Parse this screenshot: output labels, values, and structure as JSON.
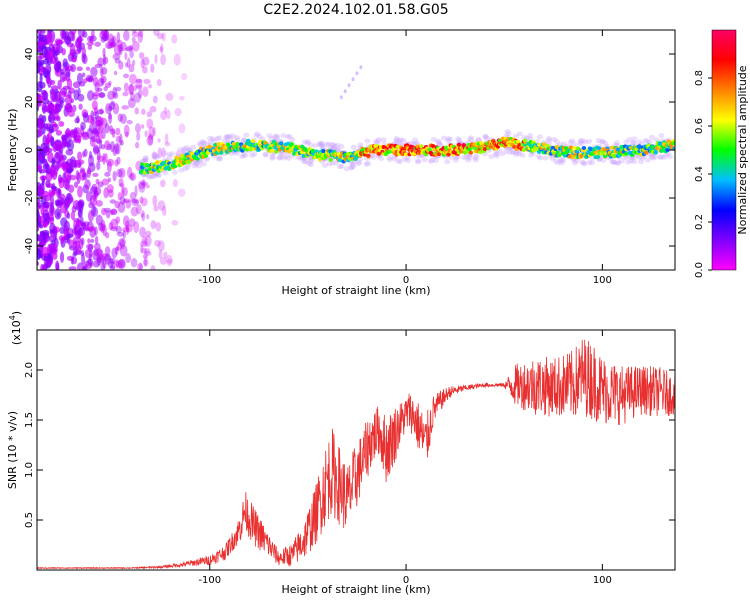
{
  "page_title": "C2E2.2024.102.01.58.G05",
  "chart_data": [
    {
      "type": "heatmap",
      "title": "",
      "xlabel": "Height of straight line (km)",
      "ylabel": "Frequency (Hz)",
      "xlim": [
        -188,
        137
      ],
      "ylim": [
        -50,
        50
      ],
      "xticks": [
        -100,
        0,
        100
      ],
      "yticks": [
        -40,
        -20,
        0,
        20,
        40
      ],
      "grid": false,
      "colorbar": {
        "label": "Normalized spectral amplitude",
        "range": [
          0,
          1
        ],
        "ticks": [
          0.0,
          0.2,
          0.4,
          0.6,
          0.8
        ],
        "colormap": [
          "#ff00ff",
          "#7f00ff",
          "#0000ff",
          "#00bfff",
          "#00ff00",
          "#ffff00",
          "#ff8000",
          "#ff0000",
          "#ff0066"
        ]
      },
      "ridge": {
        "x": [
          -135,
          -120,
          -100,
          -80,
          -60,
          -45,
          -30,
          -15,
          0,
          20,
          40,
          50,
          60,
          80,
          100,
          120,
          137
        ],
        "frequency": [
          -8,
          -6,
          0,
          2,
          1,
          -2,
          -3,
          0,
          0,
          0,
          1,
          3,
          2,
          -1,
          -1,
          0,
          2
        ]
      },
      "noise_region_x": [
        -188,
        -110
      ]
    },
    {
      "type": "line",
      "title": "",
      "xlabel": "Height of straight line (km)",
      "ylabel": "SNR (10 * v/v)",
      "y_exponent_label": "(x10",
      "y_exponent": "4",
      "xlim": [
        -188,
        137
      ],
      "ylim": [
        0,
        2.4
      ],
      "xticks": [
        -100,
        0,
        100
      ],
      "yticks": [
        0.5,
        1.0,
        1.5,
        2.0
      ],
      "grid": false,
      "series": [
        {
          "color": "#e83030",
          "x": [
            -188,
            -140,
            -125,
            -115,
            -100,
            -92,
            -88,
            -85,
            -82,
            -78,
            -72,
            -65,
            -58,
            -52,
            -46,
            -42,
            -38,
            -34,
            -30,
            -26,
            -22,
            -18,
            -14,
            -10,
            -6,
            -2,
            2,
            6,
            10,
            14,
            18,
            22,
            30,
            40,
            50,
            55,
            65,
            75,
            85,
            90,
            95,
            100,
            110,
            120,
            130,
            137
          ],
          "y": [
            0.02,
            0.02,
            0.03,
            0.05,
            0.1,
            0.18,
            0.3,
            0.4,
            0.6,
            0.45,
            0.3,
            0.12,
            0.15,
            0.3,
            0.55,
            0.8,
            1.0,
            0.85,
            0.7,
            0.9,
            1.1,
            1.3,
            1.4,
            1.2,
            1.35,
            1.5,
            1.6,
            1.45,
            1.25,
            1.6,
            1.7,
            1.78,
            1.82,
            1.85,
            1.85,
            1.85,
            1.85,
            1.83,
            1.85,
            1.95,
            1.9,
            1.8,
            1.75,
            1.8,
            1.78,
            1.75
          ],
          "noise_amplitude": [
            0.005,
            0.005,
            0.01,
            0.02,
            0.05,
            0.08,
            0.1,
            0.15,
            0.2,
            0.2,
            0.15,
            0.08,
            0.12,
            0.2,
            0.3,
            0.4,
            0.45,
            0.4,
            0.35,
            0.35,
            0.3,
            0.3,
            0.25,
            0.35,
            0.3,
            0.2,
            0.2,
            0.25,
            0.3,
            0.15,
            0.1,
            0.06,
            0.03,
            0.02,
            0.02,
            0.2,
            0.3,
            0.3,
            0.35,
            0.4,
            0.4,
            0.35,
            0.3,
            0.25,
            0.25,
            0.2
          ]
        }
      ]
    }
  ]
}
